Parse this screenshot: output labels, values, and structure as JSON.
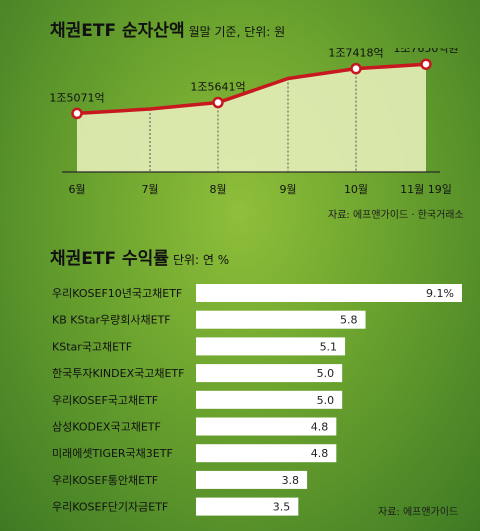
{
  "chart_data": [
    {
      "type": "line",
      "title": "채권ETF 순자산액",
      "subtitle": "월말 기준, 단위: 원",
      "categories": [
        "6월",
        "7월",
        "8월",
        "9월",
        "10월",
        "11월 19일"
      ],
      "values": [
        15071,
        15300,
        15641,
        16900,
        17418,
        17650
      ],
      "data_labels": [
        "1조5071억",
        "",
        "1조5641억",
        "",
        "1조7418억",
        "1조7650억원"
      ],
      "ylim": [
        12000,
        18500
      ],
      "source": "자료: 에프앤가이드 · 한국거래소",
      "colors": {
        "line": "#c8181f",
        "area": "#e3edb6",
        "marker": "#c8181f"
      }
    },
    {
      "type": "bar",
      "orientation": "horizontal",
      "title": "채권ETF 수익률",
      "subtitle": "단위: 연 %",
      "categories": [
        "우리KOSEF10년국고채ETF",
        "KB KStar우량회사채ETF",
        "KStar국고채ETF",
        "한국투자KINDEX국고채ETF",
        "우리KOSEF국고채ETF",
        "삼성KODEX국고채ETF",
        "미래에셋TIGER국채3ETF",
        "우리KOSEF통안채ETF",
        "우리KOSEF단기자금ETF"
      ],
      "values": [
        9.1,
        5.8,
        5.1,
        5.0,
        5.0,
        4.8,
        4.8,
        3.8,
        3.5
      ],
      "value_labels": [
        "9.1%",
        "5.8",
        "5.1",
        "5.0",
        "5.0",
        "4.8",
        "4.8",
        "3.8",
        "3.5"
      ],
      "xlim": [
        0,
        9.1
      ],
      "source": "자료: 에프앤가이드",
      "colors": {
        "bar": "#ffffff"
      }
    }
  ]
}
